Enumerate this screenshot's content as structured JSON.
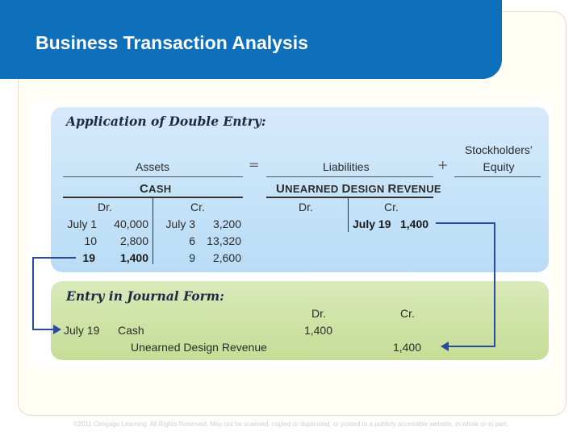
{
  "title": "Business Transaction Analysis",
  "application": {
    "heading": "Application of Double Entry:",
    "assets_label": "Assets",
    "equals": "=",
    "liabilities_label": "Liabilities",
    "plus": "+",
    "equity_label_1": "Stockholders’",
    "equity_label_2": "Equity",
    "cash": {
      "name_first": "C",
      "name_rest": "ASH",
      "dr_header": "Dr.",
      "cr_header": "Cr.",
      "dr_rows": [
        {
          "date": "July 1",
          "amount": "40,000"
        },
        {
          "date": "10",
          "amount": "2,800"
        },
        {
          "date": "19",
          "amount": "1,400"
        }
      ],
      "cr_rows": [
        {
          "date": "July 3",
          "amount": "3,200"
        },
        {
          "date": "6",
          "amount": "13,320"
        },
        {
          "date": "9",
          "amount": "2,600"
        }
      ]
    },
    "unearned": {
      "name_u": "U",
      "name_u_rest": "NEARNED",
      "name_d": "D",
      "name_d_rest": "ESIGN",
      "name_r": "R",
      "name_r_rest": "EVENUE",
      "dr_header": "Dr.",
      "cr_header": "Cr.",
      "cr_date": "July 19",
      "cr_amount": "1,400"
    }
  },
  "journal": {
    "heading": "Entry in Journal Form:",
    "dr_header": "Dr.",
    "cr_header": "Cr.",
    "date": "July 19",
    "debit_account": "Cash",
    "debit_amount": "1,400",
    "credit_account": "Unearned Design Revenue",
    "credit_amount": "1,400"
  },
  "footer": "©2011 Cengage Learning. All Rights Reserved. May not be scanned, copied or duplicated, or posted to a publicly accessible website, in whole or in part.",
  "colors": {
    "title_bar": "#0e6fba",
    "blue_panel": "#c6e3f8",
    "green_panel": "#cfe3a6",
    "arrow": "#2a4aa0"
  }
}
